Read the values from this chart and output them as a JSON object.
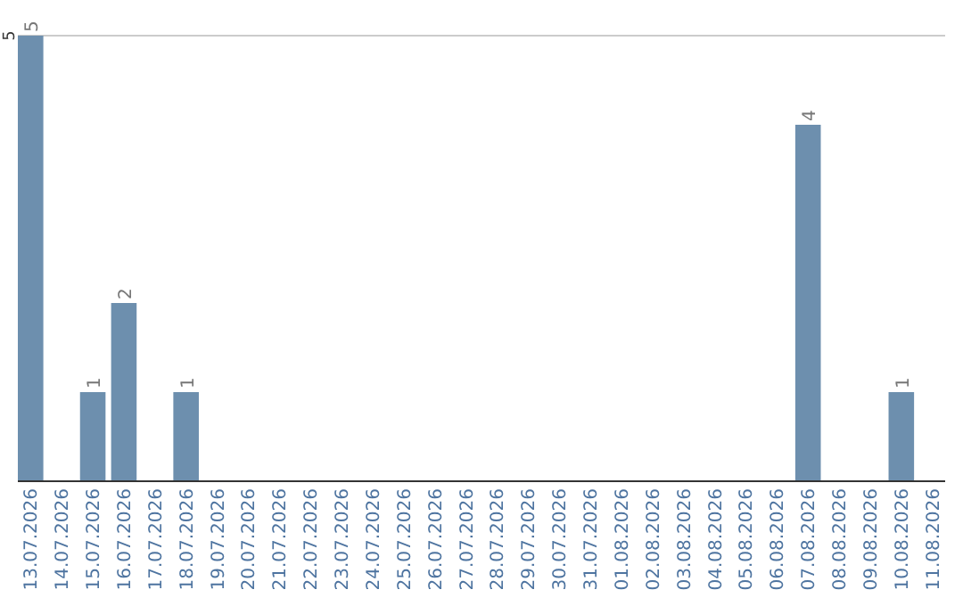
{
  "chart_data": {
    "type": "bar",
    "categories": [
      "13.07.2026",
      "14.07.2026",
      "15.07.2026",
      "16.07.2026",
      "17.07.2026",
      "18.07.2026",
      "19.07.2026",
      "20.07.2026",
      "21.07.2026",
      "22.07.2026",
      "23.07.2026",
      "24.07.2026",
      "25.07.2026",
      "26.07.2026",
      "27.07.2026",
      "28.07.2026",
      "29.07.2026",
      "30.07.2026",
      "31.07.2026",
      "01.08.2026",
      "02.08.2026",
      "03.08.2026",
      "04.08.2026",
      "05.08.2026",
      "06.08.2026",
      "07.08.2026",
      "08.08.2026",
      "09.08.2026",
      "10.08.2026",
      "11.08.2026"
    ],
    "values": [
      5,
      0,
      1,
      2,
      0,
      1,
      0,
      0,
      0,
      0,
      0,
      0,
      0,
      0,
      0,
      0,
      0,
      0,
      0,
      0,
      0,
      0,
      0,
      0,
      0,
      4,
      0,
      0,
      1,
      0
    ],
    "color": "#6d8fae",
    "value_labels": [
      "5",
      null,
      "1",
      "2",
      null,
      "1",
      null,
      null,
      null,
      null,
      null,
      null,
      null,
      null,
      null,
      null,
      null,
      null,
      null,
      null,
      null,
      null,
      null,
      null,
      null,
      "4",
      null,
      null,
      "1",
      null
    ],
    "ylim": [
      0,
      5
    ],
    "yticks": [
      5
    ],
    "ref_lines": [
      {
        "axis": "y",
        "value": 5,
        "color": "#cccccc"
      }
    ]
  }
}
